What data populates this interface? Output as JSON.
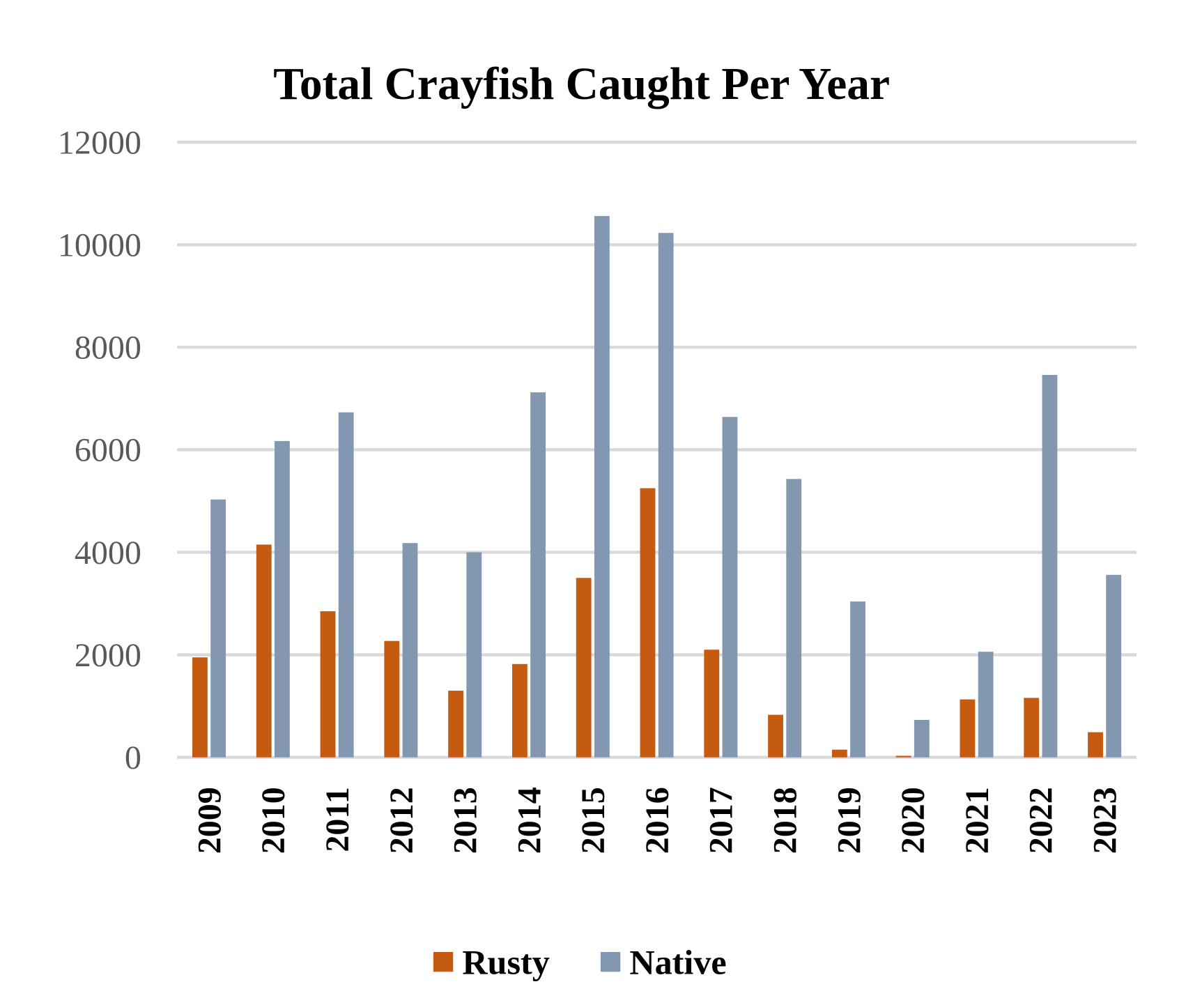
{
  "chart_data": {
    "type": "bar",
    "title": "Total Crayfish Caught Per Year",
    "xlabel": "",
    "ylabel": "",
    "ylim": [
      0,
      12000
    ],
    "yticks": [
      "0",
      "2000",
      "4000",
      "6000",
      "8000",
      "10000",
      "12000"
    ],
    "grid": true,
    "legend_position": "bottom",
    "categories": [
      "2009",
      "2010",
      "2011",
      "2012",
      "2013",
      "2014",
      "2015",
      "2016",
      "2017",
      "2018",
      "2019",
      "2020",
      "2021",
      "2022",
      "2023"
    ],
    "series": [
      {
        "name": "Rusty",
        "color": "#C55A11",
        "values": [
          1950,
          4150,
          2850,
          2270,
          1300,
          1820,
          3500,
          5250,
          2100,
          830,
          150,
          30,
          1130,
          1160,
          490
        ]
      },
      {
        "name": "Native",
        "color": "#8497B0",
        "values": [
          5030,
          6170,
          6730,
          4180,
          4000,
          7120,
          10560,
          10230,
          6640,
          5430,
          3040,
          730,
          2060,
          7460,
          3560
        ]
      }
    ]
  }
}
